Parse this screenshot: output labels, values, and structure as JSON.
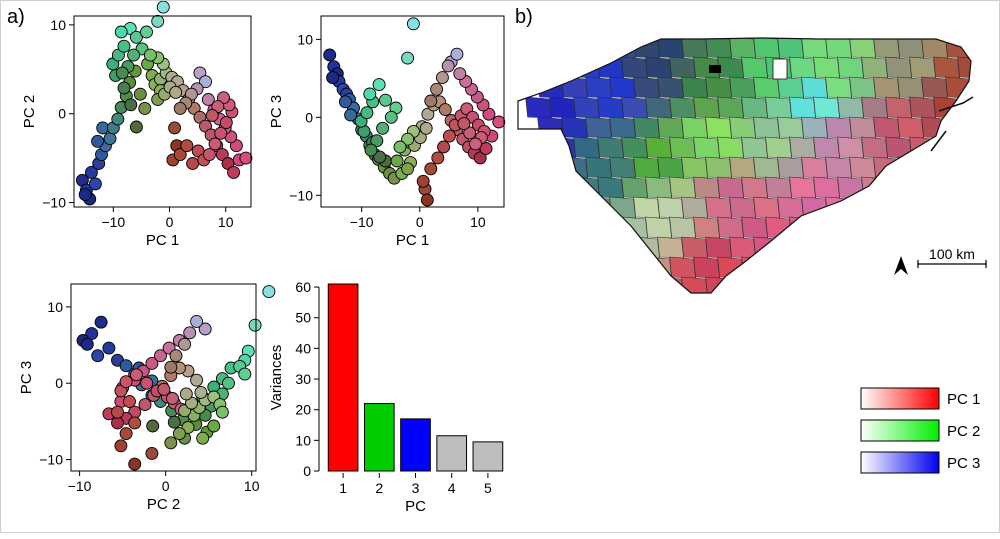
{
  "panel_labels": {
    "a": "a)",
    "b": "b)"
  },
  "scatter_points": [
    {
      "pc1": -15.5,
      "pc2": -7.5,
      "pc3": 8,
      "color": "#1e2c8e"
    },
    {
      "pc1": -14.8,
      "pc2": -8.6,
      "pc3": 6.5,
      "color": "#2233a0"
    },
    {
      "pc1": -14.2,
      "pc2": -9.6,
      "pc3": 5.6,
      "color": "#1b2b7a"
    },
    {
      "pc1": -13.9,
      "pc2": -6.6,
      "pc3": 4.6,
      "color": "#243a9c"
    },
    {
      "pc1": -13.2,
      "pc2": -7.9,
      "pc3": 3.6,
      "color": "#2b45a8"
    },
    {
      "pc1": -12.6,
      "pc2": -5.6,
      "pc3": 3,
      "color": "#2a3f9a"
    },
    {
      "pc1": -15,
      "pc2": -9.1,
      "pc3": 5.1,
      "color": "#1c2a85"
    },
    {
      "pc1": -12.1,
      "pc2": -4.6,
      "pc3": 2.3,
      "color": "#305a9e"
    },
    {
      "pc1": -11.4,
      "pc2": -3.6,
      "pc3": 1.2,
      "color": "#3a6aa0"
    },
    {
      "pc1": -10.6,
      "pc2": -2.8,
      "pc3": -0.2,
      "color": "#3d7498"
    },
    {
      "pc1": -11.9,
      "pc2": -1.6,
      "pc3": 0.3,
      "color": "#356c9a"
    },
    {
      "pc1": -12.8,
      "pc2": -3.1,
      "pc3": 2,
      "color": "#2f5aa0"
    },
    {
      "pc1": -10,
      "pc2": -1.6,
      "pc3": -1.6,
      "color": "#407a8e"
    },
    {
      "pc1": -9.2,
      "pc2": -0.6,
      "pc3": -2.4,
      "color": "#3f8a7c"
    },
    {
      "pc1": -8.6,
      "pc2": 0.7,
      "pc3": -3.6,
      "color": "#4a8a5a"
    },
    {
      "pc1": -7.7,
      "pc2": 2,
      "pc3": -4.8,
      "color": "#4f8f4a"
    },
    {
      "pc1": -7.1,
      "pc2": 3.5,
      "pc3": -5.4,
      "color": "#5a8e3c"
    },
    {
      "pc1": -6.1,
      "pc2": 4.8,
      "pc3": -6.4,
      "color": "#64963a"
    },
    {
      "pc1": -5.2,
      "pc2": 2.2,
      "pc3": -7.2,
      "color": "#6a8f40"
    },
    {
      "pc1": -4.4,
      "pc2": 0.6,
      "pc3": -7.8,
      "color": "#79914a"
    },
    {
      "pc1": -5.9,
      "pc2": -1.5,
      "pc3": -5.6,
      "color": "#556a3a"
    },
    {
      "pc1": -6.9,
      "pc2": 1,
      "pc3": -5.1,
      "color": "#487048"
    },
    {
      "pc1": -8.1,
      "pc2": 2.9,
      "pc3": -3.2,
      "color": "#4a7d52"
    },
    {
      "pc1": -9.6,
      "pc2": 4.3,
      "pc3": -1.8,
      "color": "#3fa06a"
    },
    {
      "pc1": -10.1,
      "pc2": 5.6,
      "pc3": -0.5,
      "color": "#3ab07a"
    },
    {
      "pc1": -9.1,
      "pc2": 6.6,
      "pc3": 0.6,
      "color": "#48b880"
    },
    {
      "pc1": -8.1,
      "pc2": 7.6,
      "pc3": 2,
      "color": "#45c088"
    },
    {
      "pc1": -7,
      "pc2": 9.6,
      "pc3": 4.2,
      "color": "#5ce0b8"
    },
    {
      "pc1": -8.6,
      "pc2": 9.2,
      "pc3": 3,
      "color": "#4cd8a8"
    },
    {
      "pc1": -5.9,
      "pc2": 8.6,
      "pc3": 2.2,
      "color": "#5ac890"
    },
    {
      "pc1": -4.1,
      "pc2": 9.2,
      "pc3": 1.2,
      "color": "#60d090"
    },
    {
      "pc1": -4.9,
      "pc2": 7.3,
      "pc3": 0,
      "color": "#58c080"
    },
    {
      "pc1": -6.4,
      "pc2": 6.6,
      "pc3": -1.4,
      "color": "#4fb078"
    },
    {
      "pc1": -7.4,
      "pc2": 5.3,
      "pc3": -3,
      "color": "#479a60"
    },
    {
      "pc1": -8.4,
      "pc2": 4.6,
      "pc3": -4.2,
      "color": "#468c50"
    },
    {
      "pc1": -3.9,
      "pc2": 5.6,
      "pc3": -5.6,
      "color": "#6aa848"
    },
    {
      "pc1": -3.1,
      "pc2": 4.3,
      "pc3": -7.2,
      "color": "#7ab050"
    },
    {
      "pc1": -2.6,
      "pc2": 3.3,
      "pc3": -4.2,
      "color": "#88b060"
    },
    {
      "pc1": -1.6,
      "pc2": 3.9,
      "pc3": -3.2,
      "color": "#92b070"
    },
    {
      "pc1": -0.6,
      "pc2": 4.6,
      "pc3": -2.2,
      "color": "#a0b888"
    },
    {
      "pc1": 0.4,
      "pc2": 4.1,
      "pc3": -1.2,
      "color": "#a8b090"
    },
    {
      "pc1": 1.4,
      "pc2": 3.6,
      "pc3": 0.4,
      "color": "#b0a890"
    },
    {
      "pc1": 2.4,
      "pc2": 2.6,
      "pc3": 1.6,
      "color": "#b8a088"
    },
    {
      "pc1": 3.4,
      "pc2": 1.6,
      "pc3": 2,
      "color": "#b89078"
    },
    {
      "pc1": 4.4,
      "pc2": 0.6,
      "pc3": 1,
      "color": "#b07a68"
    },
    {
      "pc1": 5.4,
      "pc2": -0.4,
      "pc3": -0.4,
      "color": "#b06a68"
    },
    {
      "pc1": 6.4,
      "pc2": -1.4,
      "pc3": -1.6,
      "color": "#b85a6a"
    },
    {
      "pc1": 7.4,
      "pc2": -2.4,
      "pc3": -2.8,
      "color": "#c0566c"
    },
    {
      "pc1": 8.4,
      "pc2": -3.6,
      "pc3": -3.8,
      "color": "#c04c64"
    },
    {
      "pc1": 9.4,
      "pc2": -4.6,
      "pc3": -4.6,
      "color": "#b83c5a"
    },
    {
      "pc1": 10.4,
      "pc2": -5.6,
      "pc3": -5.2,
      "color": "#a83048"
    },
    {
      "pc1": 11.4,
      "pc2": -6.6,
      "pc3": -4,
      "color": "#c03c5c"
    },
    {
      "pc1": 12.4,
      "pc2": -5.2,
      "pc3": -2.4,
      "color": "#d04878"
    },
    {
      "pc1": 13.6,
      "pc2": -5,
      "pc3": -0.6,
      "color": "#d84c80"
    },
    {
      "pc1": 11.9,
      "pc2": -3.6,
      "pc3": 0.4,
      "color": "#d04c7c"
    },
    {
      "pc1": 10.9,
      "pc2": -2.6,
      "pc3": 1.6,
      "color": "#cc5280"
    },
    {
      "pc1": 9.9,
      "pc2": -1.6,
      "pc3": 2.6,
      "color": "#c85a88"
    },
    {
      "pc1": 8.9,
      "pc2": -0.6,
      "pc3": 3.6,
      "color": "#c86490"
    },
    {
      "pc1": 7.9,
      "pc2": 0.4,
      "pc3": 4.6,
      "color": "#c8709c"
    },
    {
      "pc1": 6.9,
      "pc2": 1.6,
      "pc3": 5.6,
      "color": "#c080a8"
    },
    {
      "pc1": 5.4,
      "pc2": 4.6,
      "pc3": 7.1,
      "color": "#b8a0c8"
    },
    {
      "pc1": 6.4,
      "pc2": 3.6,
      "pc3": 8.1,
      "color": "#a8b0d8"
    },
    {
      "pc1": 4.9,
      "pc2": 2.8,
      "pc3": 6.6,
      "color": "#b890b0"
    },
    {
      "pc1": 3.9,
      "pc2": 2.2,
      "pc3": 5.1,
      "color": "#b09890"
    },
    {
      "pc1": 2.9,
      "pc2": 1.2,
      "pc3": 3.6,
      "color": "#a88878"
    },
    {
      "pc1": 1.9,
      "pc2": 0.6,
      "pc3": 2.1,
      "color": "#a07868"
    },
    {
      "pc1": 0.9,
      "pc2": -1.6,
      "pc3": -9.2,
      "color": "#9a4a38"
    },
    {
      "pc1": 1.3,
      "pc2": -3.6,
      "pc3": -10.6,
      "color": "#8a3424"
    },
    {
      "pc1": 0.6,
      "pc2": -5.2,
      "pc3": -8.2,
      "color": "#a04030"
    },
    {
      "pc1": 1.9,
      "pc2": -4.6,
      "pc3": -6.6,
      "color": "#a84838"
    },
    {
      "pc1": 3.1,
      "pc2": -3.6,
      "pc3": -5.2,
      "color": "#b04c40"
    },
    {
      "pc1": 4.1,
      "pc2": -5.6,
      "pc3": -3.8,
      "color": "#b84848"
    },
    {
      "pc1": 5.1,
      "pc2": -4.2,
      "pc3": -2.4,
      "color": "#c04c52"
    },
    {
      "pc1": 6.1,
      "pc2": -5.2,
      "pc3": -1,
      "color": "#c45058"
    },
    {
      "pc1": 7.1,
      "pc2": -4.6,
      "pc3": 0.2,
      "color": "#c8566a"
    },
    {
      "pc1": 8.1,
      "pc2": -3.4,
      "pc3": 1.1,
      "color": "#cc5a74"
    },
    {
      "pc1": 9.1,
      "pc2": -2.2,
      "pc3": 0,
      "color": "#c85070"
    },
    {
      "pc1": 10.1,
      "pc2": -1,
      "pc3": -1,
      "color": "#c84a68"
    },
    {
      "pc1": 11.1,
      "pc2": 0.2,
      "pc3": -1.8,
      "color": "#d05070"
    },
    {
      "pc1": 10.6,
      "pc2": 1,
      "pc3": -2.6,
      "color": "#d45878"
    },
    {
      "pc1": 9.6,
      "pc2": 1.8,
      "pc3": -3.4,
      "color": "#cc6080"
    },
    {
      "pc1": 8.6,
      "pc2": 0.8,
      "pc3": -2,
      "color": "#c46078"
    },
    {
      "pc1": 7.6,
      "pc2": -0.2,
      "pc3": -0.8,
      "color": "#c05868"
    },
    {
      "pc1": -1.6,
      "pc2": 2.6,
      "pc3": -5.8,
      "color": "#8cae58"
    },
    {
      "pc1": -2.1,
      "pc2": 1.6,
      "pc3": -6.6,
      "color": "#809f50"
    },
    {
      "pc1": -0.9,
      "pc2": 2.2,
      "pc3": -3.6,
      "color": "#98aa70"
    },
    {
      "pc1": 0.1,
      "pc2": 3,
      "pc3": -2.6,
      "color": "#a4ae80"
    },
    {
      "pc1": 1.1,
      "pc2": 2.4,
      "pc3": -1.4,
      "color": "#aca888"
    },
    {
      "pc1": -1.1,
      "pc2": 5.6,
      "pc3": -1.8,
      "color": "#9cc080"
    },
    {
      "pc1": -2.1,
      "pc2": 6.3,
      "pc3": -2.8,
      "color": "#88c070"
    },
    {
      "pc1": -3.4,
      "pc2": 6.6,
      "pc3": -3.8,
      "color": "#78c068"
    },
    {
      "pc1": -1.1,
      "pc2": 12,
      "pc3": 12,
      "color": "#88e0e0"
    },
    {
      "pc1": -2.1,
      "pc2": 10.4,
      "pc3": 7.6,
      "color": "#78d8c0"
    }
  ],
  "chart_data": [
    {
      "id": "scatter-pc1-pc2",
      "type": "scatter",
      "x_field": "pc1",
      "y_field": "pc2",
      "xlabel": "PC 1",
      "ylabel": "PC 2",
      "xlim": [
        -17,
        14.5
      ],
      "ylim": [
        -10.5,
        11
      ],
      "xticks": [
        -10,
        0,
        10
      ],
      "yticks": [
        -10,
        0,
        10
      ],
      "xtick_labels": [
        "−10",
        "0",
        "10"
      ],
      "ytick_labels": [
        "−10",
        "0",
        "10"
      ]
    },
    {
      "id": "scatter-pc1-pc3",
      "type": "scatter",
      "x_field": "pc1",
      "y_field": "pc3",
      "xlabel": "PC 1",
      "ylabel": "PC 3",
      "xlim": [
        -17,
        14.5
      ],
      "ylim": [
        -11.5,
        13
      ],
      "xticks": [
        -10,
        0,
        10
      ],
      "yticks": [
        -10,
        0,
        10
      ],
      "xtick_labels": [
        "−10",
        "0",
        "10"
      ],
      "ytick_labels": [
        "−10",
        "0",
        "10"
      ]
    },
    {
      "id": "scatter-pc2-pc3",
      "type": "scatter",
      "x_field": "pc2",
      "y_field": "pc3",
      "xlabel": "PC 2",
      "ylabel": "PC 3",
      "xlim": [
        -11,
        10.5
      ],
      "ylim": [
        -11.5,
        13
      ],
      "xticks": [
        -10,
        0,
        10
      ],
      "yticks": [
        -10,
        0,
        10
      ],
      "xtick_labels": [
        "−10",
        "0",
        "10"
      ],
      "ytick_labels": [
        "−10",
        "0",
        "10"
      ]
    },
    {
      "id": "variance-bars",
      "type": "bar",
      "categories": [
        "1",
        "2",
        "3",
        "4",
        "5"
      ],
      "values": [
        61,
        22,
        17,
        11.5,
        9.5
      ],
      "colors": [
        "#ff0000",
        "#00cc00",
        "#0000ff",
        "#bebebe",
        "#bebebe"
      ],
      "xlabel": "PC",
      "ylabel": "Variances",
      "ylim": [
        0,
        61
      ],
      "yticks": [
        0,
        10,
        20,
        30,
        40,
        50,
        60
      ],
      "ytick_labels": [
        "0",
        "10",
        "20",
        "30",
        "40",
        "50",
        "60"
      ]
    }
  ],
  "map": {
    "scale_label": "100 km",
    "north_arrow": "north-arrow"
  },
  "legend": [
    {
      "label": "PC 1",
      "from": "#ffffff",
      "to": "#ff0000"
    },
    {
      "label": "PC 2",
      "from": "#ffffff",
      "to": "#00ee00"
    },
    {
      "label": "PC 3",
      "from": "#ffffff",
      "to": "#0000ee"
    }
  ]
}
